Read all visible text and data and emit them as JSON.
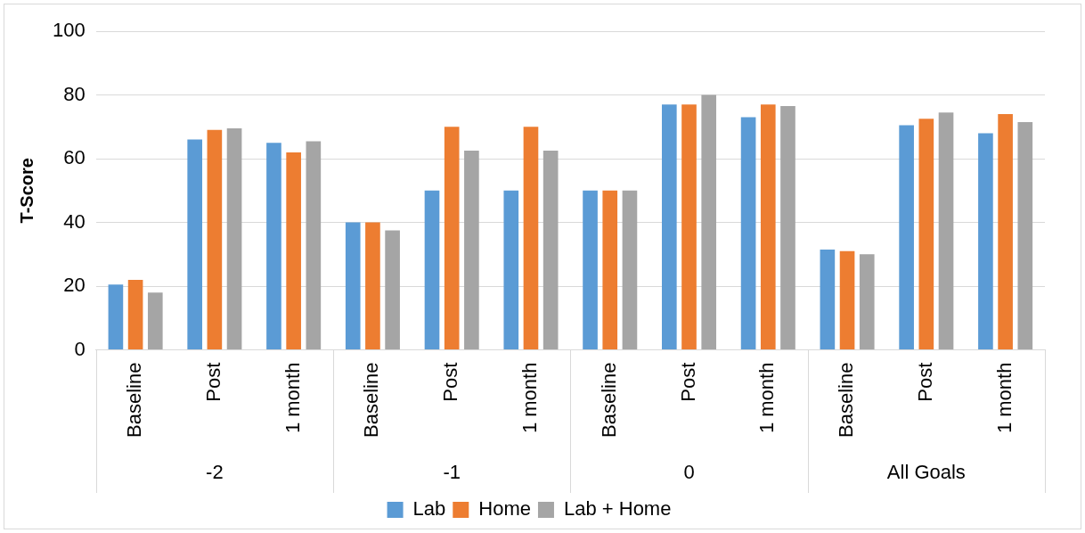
{
  "chart_data": {
    "type": "bar",
    "ylabel": "T-Score",
    "categories": [
      "Baseline",
      "Post",
      "1 month",
      "Baseline",
      "Post",
      "1 month",
      "Baseline",
      "Post",
      "1 month",
      "Baseline",
      "Post",
      "1 month"
    ],
    "annotations": [
      "-2",
      "-1",
      "0",
      "All Goals"
    ],
    "series": [
      {
        "name": "Lab",
        "color": "#5b9bd5",
        "values": [
          20.5,
          66,
          65,
          40,
          50,
          50,
          50,
          77,
          73,
          31.5,
          70.5,
          68
        ]
      },
      {
        "name": "Home",
        "color": "#ed7d31",
        "values": [
          22,
          69,
          62,
          40,
          70,
          70,
          50,
          77,
          77,
          31,
          72.5,
          74
        ]
      },
      {
        "name": "Lab + Home",
        "color": "#a5a5a5",
        "values": [
          18,
          69.5,
          65.5,
          37.5,
          62.5,
          62.5,
          50,
          80,
          76.5,
          30,
          74.5,
          71.5
        ]
      }
    ],
    "ylim": [
      0,
      100
    ],
    "yticks": [
      0,
      20,
      40,
      60,
      80,
      100
    ],
    "grid": "y",
    "legend": "bottom"
  }
}
